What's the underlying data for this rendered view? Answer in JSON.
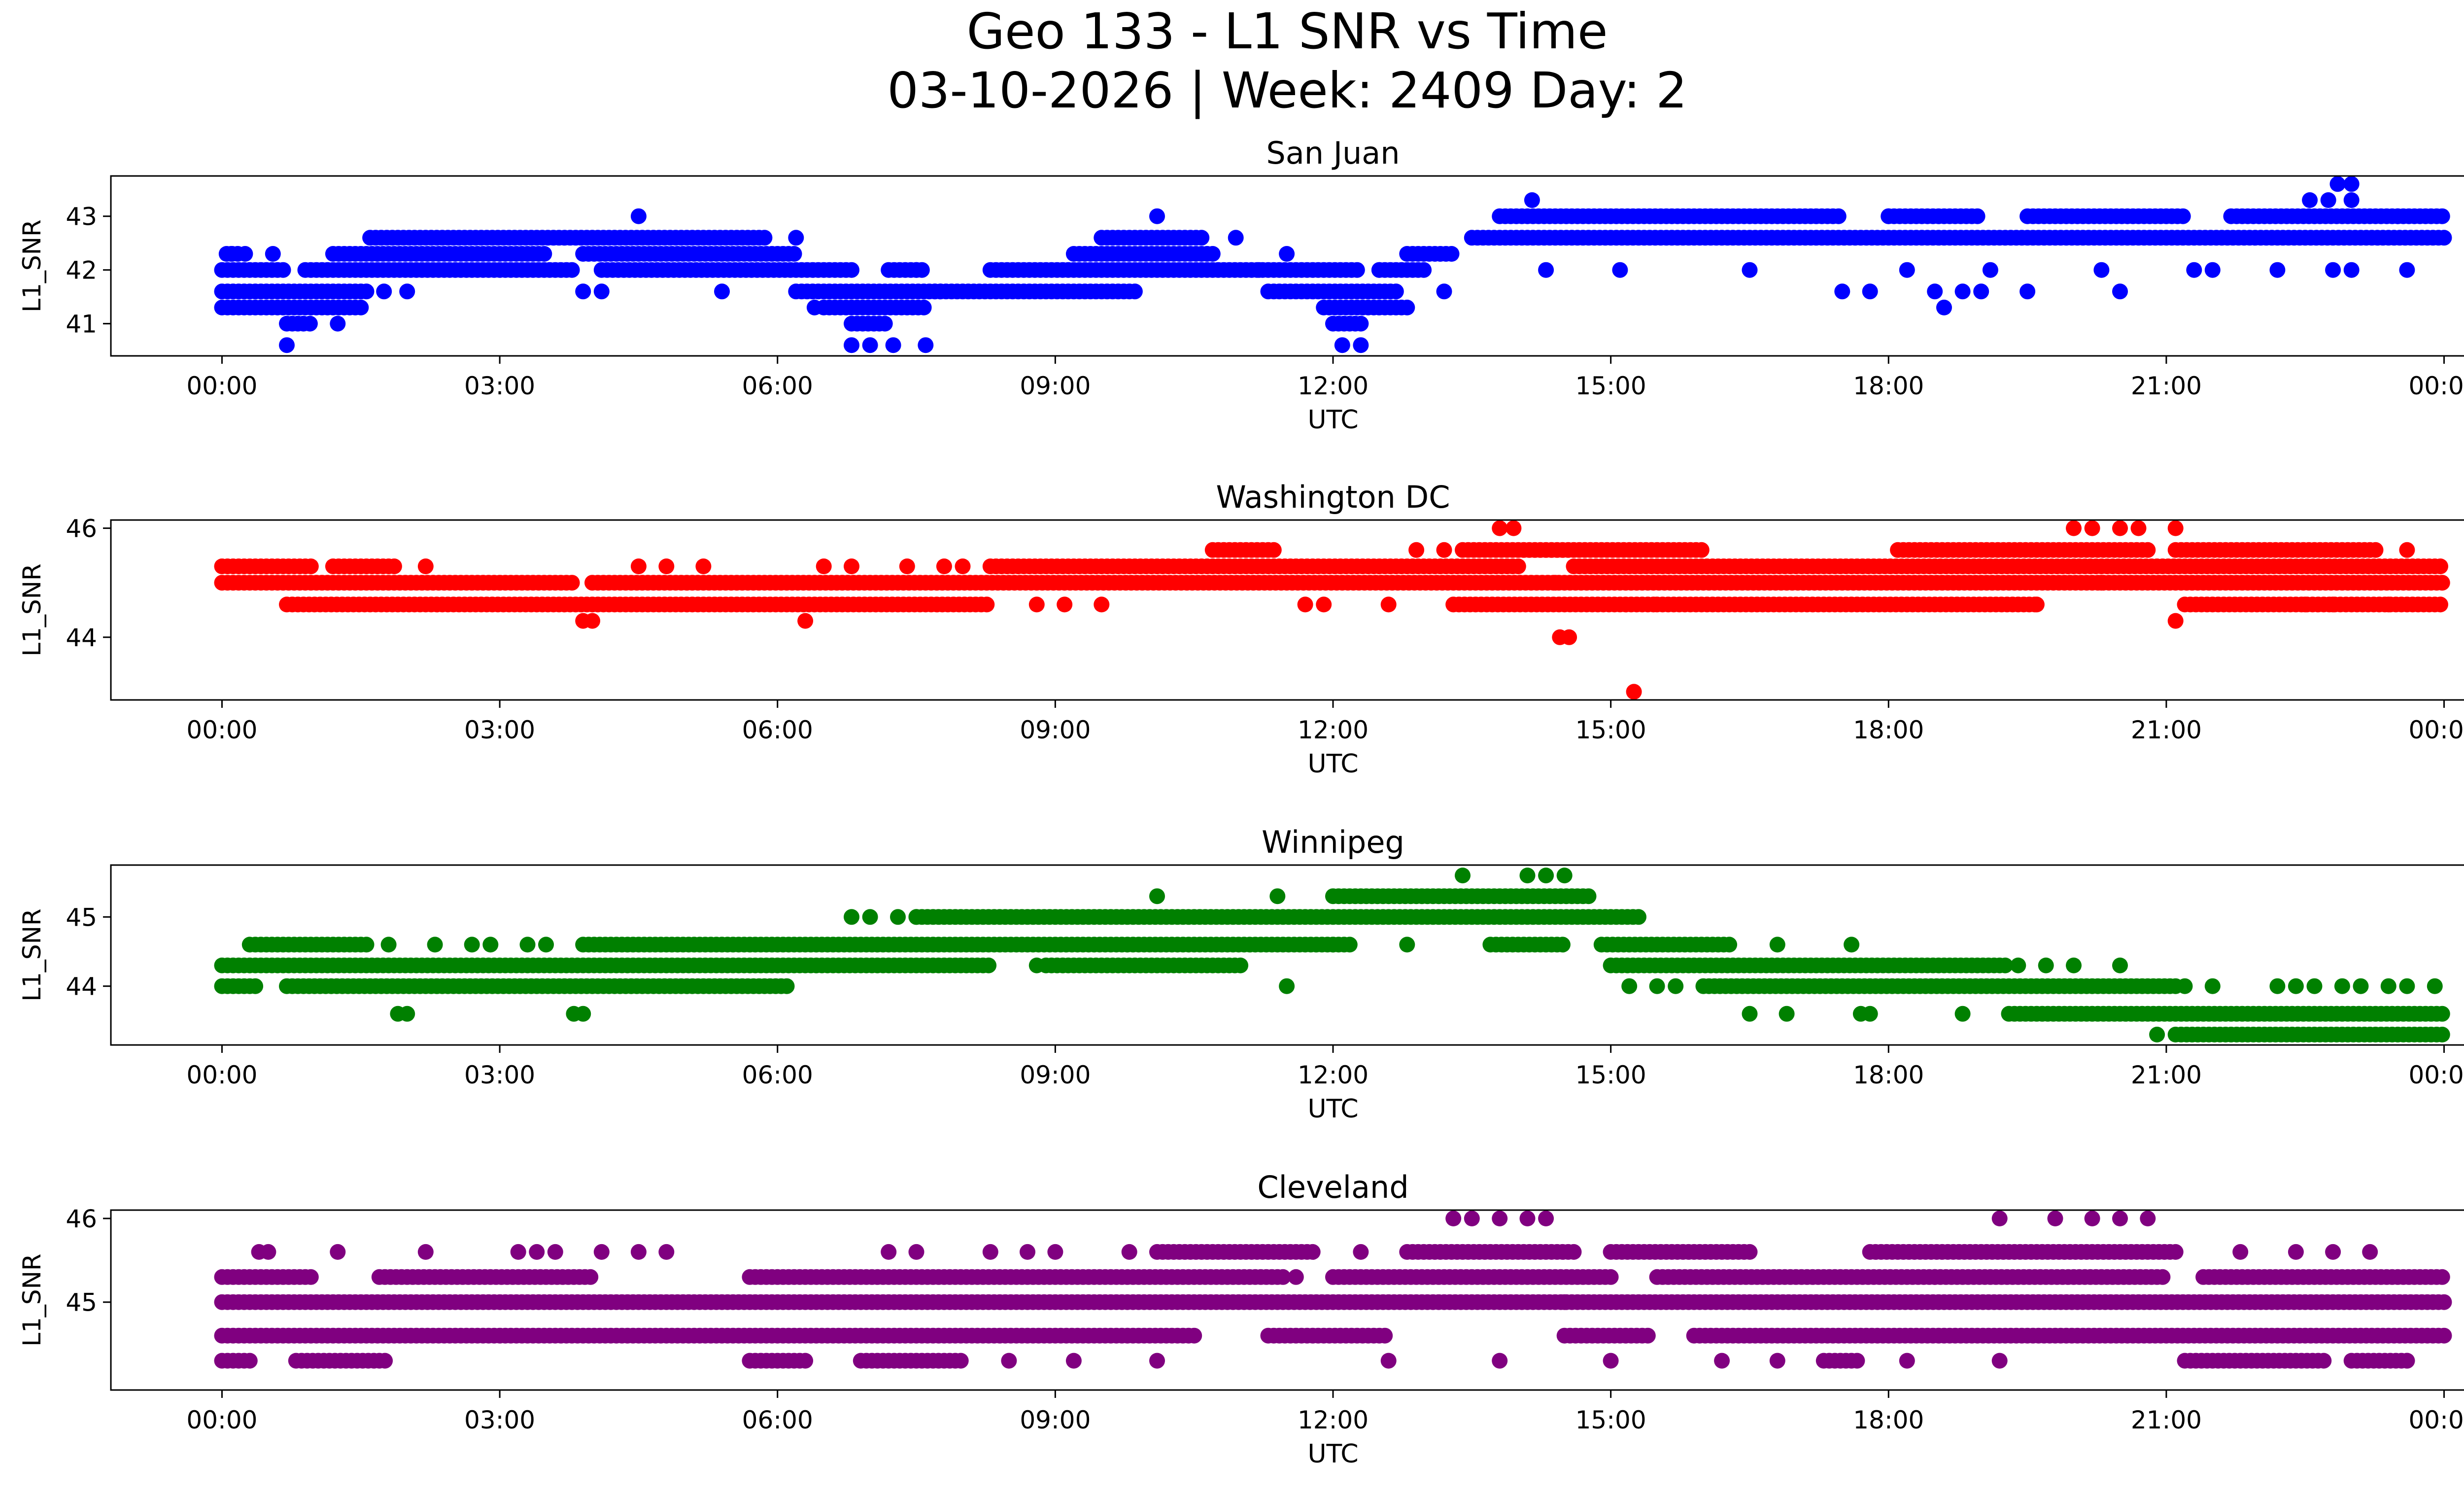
{
  "figure": {
    "title_line1": "Geo 133 - L1 SNR vs Time",
    "title_line2": "03-10-2026 | Week: 2409 Day: 2"
  },
  "x_ticks": [
    "00:00",
    "03:00",
    "06:00",
    "09:00",
    "12:00",
    "15:00",
    "18:00",
    "21:00",
    "00:00"
  ],
  "chart_data": [
    {
      "type": "scatter",
      "title": "San Juan",
      "xlabel": "UTC",
      "ylabel": "L1_SNR",
      "color": "#0000ff",
      "x_unit": "hours UTC",
      "xlim": [
        -1.2,
        25.2
      ],
      "ylim": [
        40.4,
        43.75
      ],
      "yticks": [
        41,
        42,
        43
      ],
      "grid": false,
      "legend": "none",
      "bands": [
        {
          "y": 42.3,
          "segments": [
            [
              0.05,
              0.2
            ],
            [
              1.2,
              3.5
            ],
            [
              3.9,
              6.2
            ],
            [
              9.2,
              10.7
            ],
            [
              12.8,
              13.3
            ]
          ]
        },
        {
          "y": 42.0,
          "segments": [
            [
              0.0,
              0.7
            ],
            [
              0.9,
              3.8
            ],
            [
              4.1,
              6.8
            ],
            [
              7.2,
              7.6
            ],
            [
              8.3,
              12.3
            ],
            [
              12.5,
              13.0
            ]
          ]
        },
        {
          "y": 41.6,
          "segments": [
            [
              0.0,
              1.6
            ],
            [
              6.2,
              7.8
            ],
            [
              7.7,
              9.9
            ],
            [
              11.3,
              12.7
            ]
          ]
        },
        {
          "y": 41.3,
          "segments": [
            [
              0.0,
              1.5
            ],
            [
              6.5,
              7.6
            ],
            [
              11.9,
              12.8
            ]
          ]
        },
        {
          "y": 41.0,
          "segments": [
            [
              0.7,
              0.9
            ],
            [
              6.8,
              7.2
            ],
            [
              12.0,
              12.3
            ]
          ]
        },
        {
          "y": 42.6,
          "segments": [
            [
              1.6,
              5.9
            ],
            [
              9.5,
              10.6
            ],
            [
              13.5,
              24.0
            ]
          ]
        },
        {
          "y": 43.0,
          "segments": [
            [
              13.8,
              17.5
            ],
            [
              18.0,
              19.0
            ],
            [
              19.5,
              21.2
            ],
            [
              21.7,
              24.0
            ]
          ]
        }
      ],
      "outliers": [
        [
          0.1,
          42.3
        ],
        [
          0.25,
          42.3
        ],
        [
          0.55,
          42.3
        ],
        [
          0.7,
          40.6
        ],
        [
          0.95,
          41.0
        ],
        [
          1.25,
          41.0
        ],
        [
          1.75,
          41.6
        ],
        [
          2.0,
          41.6
        ],
        [
          4.5,
          43.0
        ],
        [
          3.9,
          41.6
        ],
        [
          4.1,
          41.6
        ],
        [
          5.4,
          41.6
        ],
        [
          6.2,
          42.6
        ],
        [
          6.4,
          41.3
        ],
        [
          6.8,
          40.6
        ],
        [
          7.0,
          40.6
        ],
        [
          7.25,
          40.6
        ],
        [
          7.5,
          42.0
        ],
        [
          7.6,
          40.6
        ],
        [
          10.1,
          43.0
        ],
        [
          10.95,
          42.6
        ],
        [
          11.2,
          42.0
        ],
        [
          11.5,
          42.3
        ],
        [
          12.1,
          40.6
        ],
        [
          12.3,
          40.6
        ],
        [
          12.5,
          42.0
        ],
        [
          13.2,
          41.6
        ],
        [
          14.15,
          43.3
        ],
        [
          14.3,
          42.0
        ],
        [
          15.1,
          42.0
        ],
        [
          16.5,
          42.0
        ],
        [
          17.5,
          41.6
        ],
        [
          17.8,
          41.6
        ],
        [
          18.0,
          43.0
        ],
        [
          18.2,
          42.0
        ],
        [
          18.5,
          41.6
        ],
        [
          18.6,
          41.3
        ],
        [
          18.8,
          41.6
        ],
        [
          19.0,
          41.6
        ],
        [
          19.1,
          42.0
        ],
        [
          19.5,
          41.6
        ],
        [
          20.5,
          41.6
        ],
        [
          20.3,
          42.0
        ],
        [
          21.3,
          42.0
        ],
        [
          21.5,
          42.0
        ],
        [
          22.2,
          42.0
        ],
        [
          22.8,
          42.0
        ],
        [
          23.0,
          42.0
        ],
        [
          23.6,
          42.0
        ],
        [
          22.55,
          43.3
        ],
        [
          22.75,
          43.3
        ],
        [
          22.85,
          43.6
        ],
        [
          23.0,
          43.6
        ],
        [
          23.0,
          43.3
        ],
        [
          23.5,
          43.0
        ]
      ]
    },
    {
      "type": "scatter",
      "title": "Washington DC",
      "xlabel": "UTC",
      "ylabel": "L1_SNR",
      "color": "#ff0000",
      "x_unit": "hours UTC",
      "xlim": [
        -1.2,
        25.2
      ],
      "ylim": [
        42.85,
        46.15
      ],
      "yticks": [
        44,
        46
      ],
      "grid": false,
      "legend": "none",
      "bands": [
        {
          "y": 45.3,
          "segments": [
            [
              0.0,
              1.0
            ],
            [
              1.2,
              1.9
            ],
            [
              8.3,
              14.0
            ],
            [
              14.6,
              24.0
            ]
          ]
        },
        {
          "y": 45.0,
          "segments": [
            [
              0.0,
              3.8
            ],
            [
              4.0,
              24.0
            ]
          ]
        },
        {
          "y": 44.6,
          "segments": [
            [
              0.7,
              8.3
            ],
            [
              13.3,
              15.5
            ],
            [
              15.5,
              19.6
            ],
            [
              21.2,
              24.0
            ]
          ]
        },
        {
          "y": 45.6,
          "segments": [
            [
              10.7,
              11.4
            ],
            [
              13.4,
              16.0
            ],
            [
              18.1,
              20.8
            ],
            [
              21.1,
              23.3
            ]
          ]
        }
      ],
      "outliers": [
        [
          2.2,
          45.3
        ],
        [
          3.9,
          44.3
        ],
        [
          4.0,
          44.3
        ],
        [
          4.5,
          45.3
        ],
        [
          4.8,
          45.3
        ],
        [
          5.2,
          45.3
        ],
        [
          6.3,
          44.3
        ],
        [
          6.5,
          45.3
        ],
        [
          6.8,
          45.3
        ],
        [
          7.4,
          45.3
        ],
        [
          7.8,
          45.3
        ],
        [
          8.0,
          45.3
        ],
        [
          8.8,
          44.6
        ],
        [
          9.1,
          44.6
        ],
        [
          9.5,
          44.6
        ],
        [
          11.7,
          44.6
        ],
        [
          11.9,
          44.6
        ],
        [
          12.6,
          44.6
        ],
        [
          12.9,
          45.6
        ],
        [
          13.2,
          45.6
        ],
        [
          13.8,
          46.0
        ],
        [
          13.95,
          46.0
        ],
        [
          14.4,
          45.0
        ],
        [
          14.45,
          44.0
        ],
        [
          14.55,
          44.0
        ],
        [
          15.25,
          43.0
        ],
        [
          19.6,
          44.6
        ],
        [
          20.0,
          46.0
        ],
        [
          20.2,
          46.0
        ],
        [
          20.5,
          46.0
        ],
        [
          20.7,
          46.0
        ],
        [
          20.3,
          45.0
        ],
        [
          21.1,
          46.0
        ],
        [
          21.1,
          44.3
        ],
        [
          22.5,
          44.6
        ],
        [
          22.8,
          44.6
        ],
        [
          23.4,
          44.6
        ],
        [
          23.6,
          45.6
        ]
      ]
    },
    {
      "type": "scatter",
      "title": "Winnipeg",
      "xlabel": "UTC",
      "ylabel": "L1_SNR",
      "color": "#008000",
      "x_unit": "hours UTC",
      "xlim": [
        -1.2,
        25.2
      ],
      "ylim": [
        43.15,
        45.75
      ],
      "yticks": [
        44,
        45
      ],
      "grid": false,
      "legend": "none",
      "bands": [
        {
          "y": 44.3,
          "segments": [
            [
              0.0,
              8.3
            ],
            [
              8.9,
              11.0
            ],
            [
              15.0,
              19.3
            ]
          ]
        },
        {
          "y": 44.0,
          "segments": [
            [
              0.0,
              0.4
            ],
            [
              0.7,
              6.1
            ],
            [
              16.0,
              21.1
            ]
          ]
        },
        {
          "y": 44.6,
          "segments": [
            [
              0.3,
              1.6
            ],
            [
              3.9,
              12.2
            ],
            [
              13.7,
              14.5
            ],
            [
              14.9,
              16.3
            ]
          ]
        },
        {
          "y": 45.0,
          "segments": [
            [
              7.5,
              15.3
            ]
          ]
        },
        {
          "y": 45.3,
          "segments": [
            [
              12.0,
              14.8
            ]
          ]
        },
        {
          "y": 43.6,
          "segments": [
            [
              19.3,
              24.0
            ]
          ]
        },
        {
          "y": 43.3,
          "segments": [
            [
              21.1,
              24.0
            ]
          ]
        }
      ],
      "outliers": [
        [
          1.8,
          44.6
        ],
        [
          1.9,
          43.6
        ],
        [
          2.0,
          43.6
        ],
        [
          2.3,
          44.6
        ],
        [
          2.7,
          44.6
        ],
        [
          2.9,
          44.6
        ],
        [
          3.3,
          44.6
        ],
        [
          3.5,
          44.6
        ],
        [
          3.8,
          43.6
        ],
        [
          3.9,
          43.6
        ],
        [
          6.8,
          45.0
        ],
        [
          7.0,
          45.0
        ],
        [
          7.3,
          45.0
        ],
        [
          7.5,
          45.0
        ],
        [
          8.8,
          44.3
        ],
        [
          10.1,
          45.3
        ],
        [
          11.4,
          45.3
        ],
        [
          11.5,
          44.0
        ],
        [
          12.0,
          44.6
        ],
        [
          12.8,
          44.6
        ],
        [
          13.4,
          45.6
        ],
        [
          14.1,
          45.6
        ],
        [
          14.3,
          45.6
        ],
        [
          14.5,
          45.6
        ],
        [
          15.2,
          44.0
        ],
        [
          15.5,
          44.0
        ],
        [
          15.7,
          44.0
        ],
        [
          16.5,
          43.6
        ],
        [
          16.9,
          43.6
        ],
        [
          16.8,
          44.6
        ],
        [
          17.6,
          44.6
        ],
        [
          17.7,
          43.6
        ],
        [
          17.8,
          43.6
        ],
        [
          18.8,
          43.6
        ],
        [
          19.4,
          44.3
        ],
        [
          19.7,
          44.3
        ],
        [
          20.0,
          44.3
        ],
        [
          20.5,
          44.3
        ],
        [
          20.9,
          43.3
        ],
        [
          21.2,
          44.0
        ],
        [
          21.5,
          44.0
        ],
        [
          22.2,
          44.0
        ],
        [
          22.4,
          44.0
        ],
        [
          22.6,
          44.0
        ],
        [
          22.9,
          44.0
        ],
        [
          23.1,
          44.0
        ],
        [
          23.4,
          44.0
        ],
        [
          23.6,
          44.0
        ],
        [
          23.9,
          44.0
        ]
      ]
    },
    {
      "type": "scatter",
      "title": "Cleveland",
      "xlabel": "UTC",
      "ylabel": "L1_SNR",
      "color": "#800080",
      "x_unit": "hours UTC",
      "xlim": [
        -1.2,
        25.2
      ],
      "ylim": [
        43.95,
        46.1
      ],
      "yticks": [
        45,
        46
      ],
      "grid": false,
      "legend": "none",
      "bands": [
        {
          "y": 45.0,
          "segments": [
            [
              0.0,
              24.0
            ]
          ]
        },
        {
          "y": 44.6,
          "segments": [
            [
              0.0,
              10.5
            ],
            [
              11.3,
              12.6
            ],
            [
              14.5,
              15.4
            ],
            [
              15.9,
              24.0
            ]
          ]
        },
        {
          "y": 45.3,
          "segments": [
            [
              0.0,
              1.0
            ],
            [
              1.7,
              4.0
            ],
            [
              5.7,
              11.5
            ],
            [
              12.0,
              15.0
            ],
            [
              15.5,
              21.0
            ],
            [
              21.4,
              24.0
            ]
          ]
        },
        {
          "y": 45.6,
          "segments": [
            [
              10.1,
              11.8
            ],
            [
              12.8,
              14.6
            ],
            [
              15.0,
              16.5
            ],
            [
              17.8,
              21.1
            ]
          ]
        },
        {
          "y": 44.3,
          "segments": [
            [
              0.0,
              0.3
            ],
            [
              0.8,
              1.8
            ],
            [
              5.7,
              6.3
            ],
            [
              6.9,
              8.0
            ],
            [
              17.3,
              17.7
            ],
            [
              21.2,
              22.7
            ],
            [
              23.0,
              23.6
            ]
          ]
        }
      ],
      "outliers": [
        [
          0.4,
          45.6
        ],
        [
          0.5,
          45.6
        ],
        [
          1.25,
          45.6
        ],
        [
          2.2,
          45.6
        ],
        [
          3.2,
          45.6
        ],
        [
          3.4,
          45.6
        ],
        [
          3.6,
          45.6
        ],
        [
          4.1,
          45.6
        ],
        [
          4.5,
          45.6
        ],
        [
          4.8,
          45.6
        ],
        [
          7.2,
          45.6
        ],
        [
          7.5,
          45.6
        ],
        [
          8.3,
          45.6
        ],
        [
          8.7,
          45.6
        ],
        [
          9.0,
          45.6
        ],
        [
          9.8,
          45.6
        ],
        [
          12.3,
          45.6
        ],
        [
          13.3,
          46.0
        ],
        [
          13.5,
          46.0
        ],
        [
          13.8,
          46.0
        ],
        [
          14.1,
          46.0
        ],
        [
          14.3,
          46.0
        ],
        [
          14.5,
          45.0
        ],
        [
          8.5,
          44.3
        ],
        [
          9.2,
          44.3
        ],
        [
          10.1,
          44.3
        ],
        [
          12.6,
          44.3
        ],
        [
          13.8,
          44.3
        ],
        [
          15.0,
          44.3
        ],
        [
          16.2,
          44.3
        ],
        [
          16.8,
          44.3
        ],
        [
          18.2,
          44.3
        ],
        [
          19.2,
          44.3
        ],
        [
          19.2,
          46.0
        ],
        [
          19.8,
          46.0
        ],
        [
          20.2,
          46.0
        ],
        [
          20.5,
          46.0
        ],
        [
          20.8,
          46.0
        ],
        [
          21.8,
          45.6
        ],
        [
          22.4,
          45.6
        ],
        [
          22.8,
          45.6
        ],
        [
          23.2,
          45.6
        ],
        [
          23.6,
          44.3
        ],
        [
          18.5,
          45.3
        ],
        [
          11.6,
          45.3
        ]
      ]
    }
  ]
}
